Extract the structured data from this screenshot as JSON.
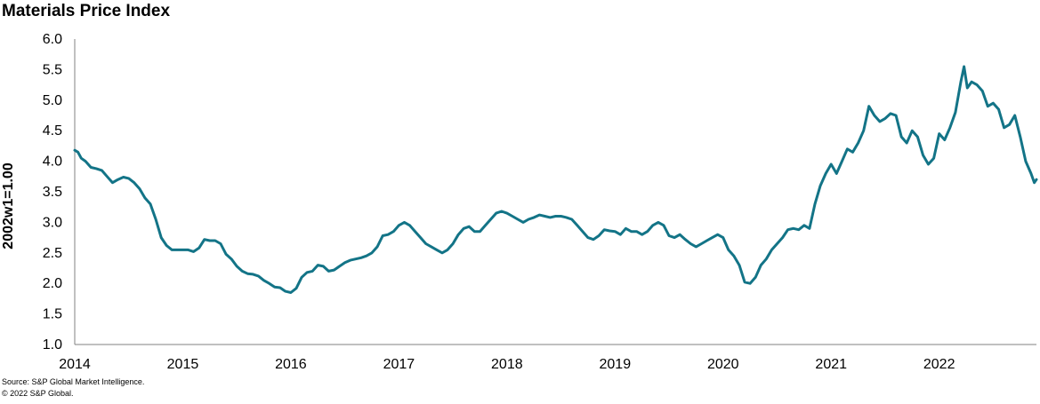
{
  "chart_data": {
    "type": "line",
    "title": "Materials Price Index",
    "ylabel": "2002w1=1.00",
    "xlabel": "",
    "ylim": [
      1.0,
      6.0
    ],
    "yticks": [
      "1.0",
      "1.5",
      "2.0",
      "2.5",
      "3.0",
      "3.5",
      "4.0",
      "4.5",
      "5.0",
      "5.5",
      "6.0"
    ],
    "xticks": [
      "2014",
      "2015",
      "2016",
      "2017",
      "2018",
      "2019",
      "2020",
      "2021",
      "2022"
    ],
    "xlim": [
      2014.0,
      2022.9
    ],
    "grid": false,
    "color": "#137487",
    "series": [
      {
        "name": "",
        "points": [
          [
            2014.0,
            4.18
          ],
          [
            2014.03,
            4.15
          ],
          [
            2014.06,
            4.05
          ],
          [
            2014.1,
            4.0
          ],
          [
            2014.15,
            3.9
          ],
          [
            2014.2,
            3.88
          ],
          [
            2014.25,
            3.85
          ],
          [
            2014.3,
            3.75
          ],
          [
            2014.35,
            3.65
          ],
          [
            2014.4,
            3.7
          ],
          [
            2014.45,
            3.74
          ],
          [
            2014.5,
            3.72
          ],
          [
            2014.55,
            3.65
          ],
          [
            2014.6,
            3.55
          ],
          [
            2014.65,
            3.4
          ],
          [
            2014.7,
            3.3
          ],
          [
            2014.75,
            3.05
          ],
          [
            2014.8,
            2.75
          ],
          [
            2014.85,
            2.62
          ],
          [
            2014.9,
            2.55
          ],
          [
            2014.95,
            2.55
          ],
          [
            2015.0,
            2.55
          ],
          [
            2015.05,
            2.55
          ],
          [
            2015.1,
            2.52
          ],
          [
            2015.15,
            2.58
          ],
          [
            2015.2,
            2.72
          ],
          [
            2015.25,
            2.7
          ],
          [
            2015.3,
            2.7
          ],
          [
            2015.35,
            2.65
          ],
          [
            2015.4,
            2.48
          ],
          [
            2015.45,
            2.4
          ],
          [
            2015.5,
            2.28
          ],
          [
            2015.55,
            2.2
          ],
          [
            2015.6,
            2.16
          ],
          [
            2015.65,
            2.15
          ],
          [
            2015.7,
            2.12
          ],
          [
            2015.75,
            2.05
          ],
          [
            2015.8,
            2.0
          ],
          [
            2015.85,
            1.94
          ],
          [
            2015.9,
            1.93
          ],
          [
            2015.95,
            1.87
          ],
          [
            2016.0,
            1.85
          ],
          [
            2016.05,
            1.92
          ],
          [
            2016.1,
            2.1
          ],
          [
            2016.15,
            2.18
          ],
          [
            2016.2,
            2.2
          ],
          [
            2016.25,
            2.3
          ],
          [
            2016.3,
            2.28
          ],
          [
            2016.35,
            2.2
          ],
          [
            2016.4,
            2.22
          ],
          [
            2016.45,
            2.28
          ],
          [
            2016.5,
            2.34
          ],
          [
            2016.55,
            2.38
          ],
          [
            2016.6,
            2.4
          ],
          [
            2016.65,
            2.42
          ],
          [
            2016.7,
            2.45
          ],
          [
            2016.75,
            2.5
          ],
          [
            2016.8,
            2.6
          ],
          [
            2016.85,
            2.78
          ],
          [
            2016.9,
            2.8
          ],
          [
            2016.95,
            2.85
          ],
          [
            2017.0,
            2.95
          ],
          [
            2017.05,
            3.0
          ],
          [
            2017.1,
            2.95
          ],
          [
            2017.15,
            2.85
          ],
          [
            2017.2,
            2.75
          ],
          [
            2017.25,
            2.65
          ],
          [
            2017.3,
            2.6
          ],
          [
            2017.35,
            2.55
          ],
          [
            2017.4,
            2.5
          ],
          [
            2017.45,
            2.55
          ],
          [
            2017.5,
            2.65
          ],
          [
            2017.55,
            2.8
          ],
          [
            2017.6,
            2.9
          ],
          [
            2017.65,
            2.93
          ],
          [
            2017.7,
            2.85
          ],
          [
            2017.75,
            2.85
          ],
          [
            2017.8,
            2.95
          ],
          [
            2017.85,
            3.05
          ],
          [
            2017.9,
            3.15
          ],
          [
            2017.95,
            3.18
          ],
          [
            2018.0,
            3.15
          ],
          [
            2018.05,
            3.1
          ],
          [
            2018.1,
            3.05
          ],
          [
            2018.15,
            3.0
          ],
          [
            2018.2,
            3.05
          ],
          [
            2018.25,
            3.08
          ],
          [
            2018.3,
            3.12
          ],
          [
            2018.35,
            3.1
          ],
          [
            2018.4,
            3.08
          ],
          [
            2018.45,
            3.1
          ],
          [
            2018.5,
            3.1
          ],
          [
            2018.55,
            3.08
          ],
          [
            2018.6,
            3.05
          ],
          [
            2018.65,
            2.95
          ],
          [
            2018.7,
            2.85
          ],
          [
            2018.75,
            2.75
          ],
          [
            2018.8,
            2.72
          ],
          [
            2018.85,
            2.78
          ],
          [
            2018.9,
            2.88
          ],
          [
            2018.95,
            2.86
          ],
          [
            2019.0,
            2.85
          ],
          [
            2019.05,
            2.8
          ],
          [
            2019.1,
            2.9
          ],
          [
            2019.15,
            2.85
          ],
          [
            2019.2,
            2.85
          ],
          [
            2019.25,
            2.8
          ],
          [
            2019.3,
            2.85
          ],
          [
            2019.35,
            2.95
          ],
          [
            2019.4,
            3.0
          ],
          [
            2019.45,
            2.95
          ],
          [
            2019.5,
            2.78
          ],
          [
            2019.55,
            2.75
          ],
          [
            2019.6,
            2.8
          ],
          [
            2019.65,
            2.72
          ],
          [
            2019.7,
            2.65
          ],
          [
            2019.75,
            2.6
          ],
          [
            2019.8,
            2.65
          ],
          [
            2019.85,
            2.7
          ],
          [
            2019.9,
            2.75
          ],
          [
            2019.95,
            2.8
          ],
          [
            2020.0,
            2.75
          ],
          [
            2020.05,
            2.55
          ],
          [
            2020.1,
            2.45
          ],
          [
            2020.15,
            2.3
          ],
          [
            2020.2,
            2.02
          ],
          [
            2020.25,
            2.0
          ],
          [
            2020.3,
            2.1
          ],
          [
            2020.35,
            2.3
          ],
          [
            2020.4,
            2.4
          ],
          [
            2020.45,
            2.55
          ],
          [
            2020.5,
            2.65
          ],
          [
            2020.55,
            2.75
          ],
          [
            2020.6,
            2.88
          ],
          [
            2020.65,
            2.9
          ],
          [
            2020.7,
            2.88
          ],
          [
            2020.75,
            2.95
          ],
          [
            2020.8,
            2.9
          ],
          [
            2020.85,
            3.3
          ],
          [
            2020.9,
            3.6
          ],
          [
            2020.95,
            3.8
          ],
          [
            2021.0,
            3.95
          ],
          [
            2021.05,
            3.8
          ],
          [
            2021.1,
            4.0
          ],
          [
            2021.15,
            4.2
          ],
          [
            2021.2,
            4.15
          ],
          [
            2021.25,
            4.3
          ],
          [
            2021.3,
            4.5
          ],
          [
            2021.35,
            4.9
          ],
          [
            2021.4,
            4.75
          ],
          [
            2021.45,
            4.65
          ],
          [
            2021.5,
            4.7
          ],
          [
            2021.55,
            4.78
          ],
          [
            2021.6,
            4.75
          ],
          [
            2021.65,
            4.4
          ],
          [
            2021.7,
            4.3
          ],
          [
            2021.75,
            4.5
          ],
          [
            2021.8,
            4.4
          ],
          [
            2021.85,
            4.1
          ],
          [
            2021.9,
            3.95
          ],
          [
            2021.95,
            4.05
          ],
          [
            2022.0,
            4.45
          ],
          [
            2022.05,
            4.35
          ],
          [
            2022.1,
            4.55
          ],
          [
            2022.15,
            4.8
          ],
          [
            2022.2,
            5.3
          ],
          [
            2022.23,
            5.55
          ],
          [
            2022.26,
            5.2
          ],
          [
            2022.3,
            5.3
          ],
          [
            2022.35,
            5.25
          ],
          [
            2022.4,
            5.15
          ],
          [
            2022.45,
            4.9
          ],
          [
            2022.5,
            4.95
          ],
          [
            2022.55,
            4.85
          ],
          [
            2022.6,
            4.55
          ],
          [
            2022.65,
            4.6
          ],
          [
            2022.7,
            4.75
          ],
          [
            2022.75,
            4.4
          ],
          [
            2022.8,
            4.0
          ],
          [
            2022.85,
            3.8
          ],
          [
            2022.88,
            3.65
          ],
          [
            2022.9,
            3.7
          ]
        ]
      }
    ]
  },
  "footer": {
    "source": "Source: S&P Global Market Intelligence.",
    "copyright": "© 2022 S&P Global."
  }
}
